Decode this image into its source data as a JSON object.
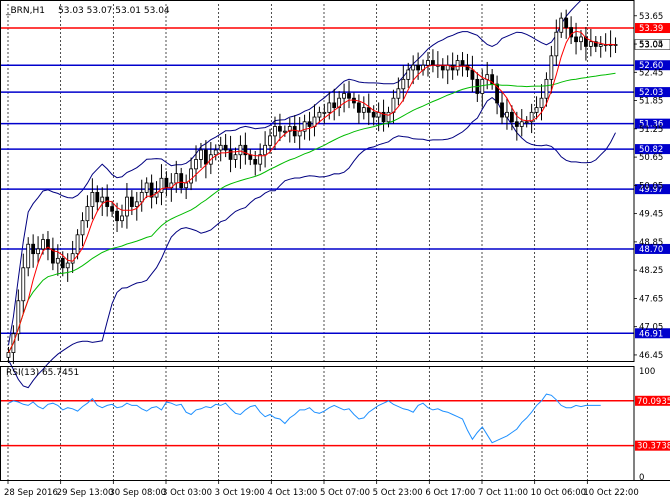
{
  "header": {
    "symbol": "_BRN,H1",
    "ohlc": "53.03 53.07 53.01 53.04"
  },
  "rsi_header": "RSI(13) 65.7451",
  "colors": {
    "candle": "#000000",
    "ma_fast": "#ff0000",
    "ma_slow": "#00bb00",
    "bollinger": "#000080",
    "level_blue": "#0000cc",
    "level_red": "#ff0000",
    "rsi_line": "#1e90ff",
    "vgrid": "#000000"
  },
  "chart_data": [
    {
      "type": "candlestick",
      "title": "_BRN,H1",
      "ylim": [
        46.3,
        53.9
      ],
      "y_ticks": [
        "53.65",
        "53.05",
        "52.45",
        "51.85",
        "51.25",
        "50.65",
        "50.05",
        "49.45",
        "48.85",
        "48.25",
        "47.65",
        "47.05",
        "46.45"
      ],
      "x_ticks": [
        "28 Sep 2016",
        "29 Sep 13:00",
        "30 Sep 08:00",
        "3 Oct 03:00",
        "3 Oct 19:00",
        "4 Oct 13:00",
        "5 Oct 07:00",
        "5 Oct 23:00",
        "6 Oct 17:00",
        "7 Oct 11:00",
        "10 Oct 06:00",
        "10 Oct 22:00"
      ],
      "current_price": "53.04",
      "levels": [
        {
          "value": 53.39,
          "label": "53.39",
          "color": "red"
        },
        {
          "value": 52.6,
          "label": "52.60",
          "color": "blue"
        },
        {
          "value": 52.03,
          "label": "52.03",
          "color": "blue"
        },
        {
          "value": 51.36,
          "label": "51.36",
          "color": "blue"
        },
        {
          "value": 50.82,
          "label": "50.82",
          "color": "blue"
        },
        {
          "value": 49.97,
          "label": "49.97",
          "color": "blue"
        },
        {
          "value": 48.7,
          "label": "48.70",
          "color": "blue"
        },
        {
          "value": 46.91,
          "label": "46.91",
          "color": "blue"
        }
      ],
      "close": [
        46.5,
        46.9,
        47.6,
        48.3,
        48.8,
        48.6,
        48.7,
        48.9,
        48.7,
        48.4,
        48.5,
        48.3,
        48.4,
        48.6,
        49.0,
        49.3,
        49.6,
        49.9,
        49.7,
        49.8,
        49.6,
        49.5,
        49.3,
        49.4,
        49.8,
        49.6,
        49.7,
        49.9,
        50.1,
        49.8,
        49.9,
        50.2,
        50.0,
        50.1,
        50.3,
        50.0,
        50.1,
        50.4,
        50.6,
        50.8,
        50.5,
        50.7,
        50.8,
        50.9,
        50.8,
        50.6,
        50.7,
        50.9,
        50.7,
        50.6,
        50.5,
        50.7,
        50.9,
        51.1,
        51.3,
        51.2,
        51.2,
        51.3,
        51.1,
        51.2,
        51.4,
        51.3,
        51.5,
        51.6,
        51.6,
        51.8,
        51.7,
        51.9,
        52.0,
        51.9,
        51.8,
        51.6,
        51.7,
        51.6,
        51.5,
        51.6,
        51.4,
        51.6,
        51.9,
        52.1,
        52.3,
        52.5,
        52.6,
        52.5,
        52.6,
        52.7,
        52.6,
        52.6,
        52.5,
        52.6,
        52.5,
        52.7,
        52.6,
        52.5,
        52.3,
        52.0,
        52.3,
        52.4,
        52.2,
        51.8,
        51.5,
        51.6,
        51.4,
        51.3,
        51.4,
        51.4,
        51.6,
        51.7,
        51.9,
        52.3,
        52.8,
        53.3,
        53.6,
        53.4,
        53.2,
        53.1,
        53.2,
        53.0,
        53.1,
        53.0,
        53.04,
        53.04,
        53.04,
        53.04
      ]
    },
    {
      "type": "line",
      "title": "RSI(13) 65.7451",
      "ylim": [
        0,
        100
      ],
      "y_ticks": [
        "100",
        "70.0935",
        "30.3738",
        "0"
      ],
      "levels": [
        {
          "value": 70.0935,
          "label": "70.0935",
          "color": "red"
        },
        {
          "value": 30.3738,
          "label": "30.3738",
          "color": "red"
        }
      ],
      "values": [
        68,
        70,
        69,
        67,
        66,
        69,
        65,
        63,
        67,
        68,
        66,
        62,
        64,
        63,
        61,
        65,
        68,
        72,
        66,
        64,
        66,
        67,
        64,
        65,
        68,
        66,
        66,
        63,
        61,
        64,
        65,
        62,
        69,
        68,
        66,
        67,
        60,
        58,
        62,
        63,
        65,
        64,
        67,
        66,
        68,
        63,
        59,
        58,
        62,
        65,
        66,
        60,
        56,
        58,
        55,
        54,
        50,
        55,
        58,
        62,
        62,
        64,
        60,
        59,
        61,
        64,
        66,
        64,
        62,
        63,
        58,
        54,
        55,
        60,
        63,
        66,
        68,
        70,
        67,
        65,
        63,
        62,
        60,
        66,
        68,
        64,
        62,
        63,
        61,
        60,
        58,
        56,
        54,
        44,
        36,
        42,
        47,
        40,
        33,
        35,
        37,
        39,
        42,
        45,
        51,
        55,
        60,
        66,
        70,
        76,
        75,
        71,
        66,
        64,
        64,
        66,
        65,
        66,
        66,
        66,
        66
      ]
    }
  ]
}
